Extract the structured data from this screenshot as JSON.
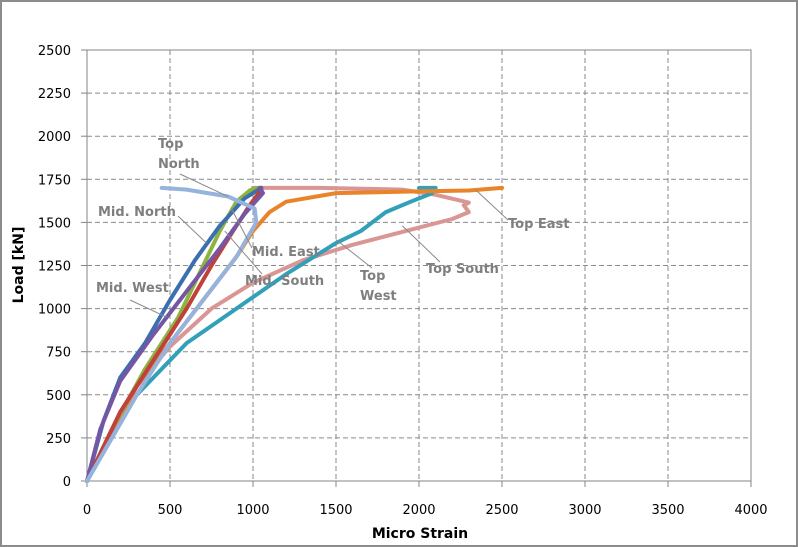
{
  "chart_data": {
    "type": "line",
    "title": "",
    "xlabel": "Micro Strain",
    "ylabel": "Load [kN]",
    "xlim": [
      0,
      4000
    ],
    "ylim": [
      0,
      2500
    ],
    "xticks": [
      0,
      500,
      1000,
      1500,
      2000,
      2500,
      3000,
      3500,
      4000
    ],
    "yticks": [
      0,
      250,
      500,
      750,
      1000,
      1250,
      1500,
      1750,
      2000,
      2250,
      2500
    ],
    "xtick_labels": [
      "0",
      "500",
      "1000",
      "1500",
      "2000",
      "2500",
      "3000",
      "3500",
      "4000"
    ],
    "ytick_labels": [
      "0",
      "250",
      "500",
      "750",
      "1000",
      "1250",
      "1500",
      "1750",
      "2000",
      "2250",
      "2500"
    ],
    "grid": true,
    "legend": "none (series labeled by annotations)",
    "series": [
      {
        "name": "Top South",
        "color": "#D99694",
        "points": [
          [
            0,
            0
          ],
          [
            300,
            550
          ],
          [
            500,
            780
          ],
          [
            750,
            1000
          ],
          [
            1000,
            1150
          ],
          [
            1300,
            1280
          ],
          [
            1600,
            1370
          ],
          [
            1800,
            1420
          ],
          [
            2000,
            1470
          ],
          [
            2200,
            1520
          ],
          [
            2300,
            1560
          ],
          [
            2270,
            1600
          ],
          [
            2300,
            1615
          ],
          [
            2100,
            1660
          ],
          [
            1900,
            1690
          ],
          [
            1400,
            1700
          ],
          [
            1000,
            1700
          ]
        ]
      },
      {
        "name": "Top West",
        "color": "#31A0B8",
        "points": [
          [
            0,
            0
          ],
          [
            300,
            500
          ],
          [
            600,
            800
          ],
          [
            900,
            1000
          ],
          [
            1200,
            1200
          ],
          [
            1500,
            1380
          ],
          [
            1650,
            1450
          ],
          [
            1800,
            1560
          ],
          [
            1950,
            1620
          ],
          [
            2080,
            1670
          ],
          [
            2000,
            1700
          ],
          [
            2100,
            1700
          ]
        ]
      },
      {
        "name": "Top East",
        "color": "#E9842A",
        "points": [
          [
            0,
            0
          ],
          [
            300,
            550
          ],
          [
            500,
            800
          ],
          [
            700,
            1050
          ],
          [
            900,
            1300
          ],
          [
            1000,
            1450
          ],
          [
            1100,
            1560
          ],
          [
            1200,
            1620
          ],
          [
            1500,
            1670
          ],
          [
            2000,
            1680
          ],
          [
            2300,
            1685
          ],
          [
            2500,
            1700
          ]
        ]
      },
      {
        "name": "Mid. North",
        "color": "#8CB43F",
        "points": [
          [
            0,
            0
          ],
          [
            150,
            300
          ],
          [
            350,
            650
          ],
          [
            550,
            950
          ],
          [
            700,
            1250
          ],
          [
            800,
            1450
          ],
          [
            900,
            1620
          ],
          [
            980,
            1685
          ],
          [
            1020,
            1700
          ]
        ]
      },
      {
        "name": "Mid. West",
        "color": "#3C6FB0",
        "points": [
          [
            0,
            0
          ],
          [
            100,
            350
          ],
          [
            200,
            600
          ],
          [
            350,
            800
          ],
          [
            500,
            1050
          ],
          [
            650,
            1280
          ],
          [
            800,
            1480
          ],
          [
            950,
            1640
          ],
          [
            1050,
            1700
          ]
        ]
      },
      {
        "name": "Mid. East",
        "color": "#C0413C",
        "points": [
          [
            0,
            0
          ],
          [
            200,
            400
          ],
          [
            400,
            700
          ],
          [
            600,
            1000
          ],
          [
            750,
            1250
          ],
          [
            880,
            1450
          ],
          [
            980,
            1600
          ],
          [
            1050,
            1690
          ]
        ]
      },
      {
        "name": "Mid. South",
        "color": "#7457A3",
        "points": [
          [
            0,
            0
          ],
          [
            80,
            300
          ],
          [
            200,
            580
          ],
          [
            400,
            850
          ],
          [
            600,
            1100
          ],
          [
            800,
            1350
          ],
          [
            950,
            1550
          ],
          [
            1060,
            1670
          ],
          [
            1040,
            1700
          ]
        ]
      },
      {
        "name": "Top North",
        "color": "#95B3DC",
        "points": [
          [
            0,
            0
          ],
          [
            300,
            500
          ],
          [
            500,
            800
          ],
          [
            700,
            1050
          ],
          [
            900,
            1300
          ],
          [
            1020,
            1500
          ],
          [
            1010,
            1580
          ],
          [
            850,
            1650
          ],
          [
            600,
            1690
          ],
          [
            450,
            1700
          ]
        ]
      }
    ],
    "annotations": [
      {
        "text_lines": [
          "Top",
          "North"
        ],
        "series": "Top North",
        "points_to": [
          850,
          1650
        ]
      },
      {
        "text_lines": [
          "Mid. North"
        ],
        "series": "Mid. North",
        "points_to": [
          720,
          1380
        ]
      },
      {
        "text_lines": [
          "Mid. West"
        ],
        "series": "Mid. West",
        "points_to": [
          480,
          950
        ]
      },
      {
        "text_lines": [
          "Mid. East"
        ],
        "series": "Mid. East",
        "points_to": [
          870,
          1580
        ]
      },
      {
        "text_lines": [
          "Mid. South"
        ],
        "series": "Mid. South",
        "points_to": [
          830,
          1450
        ]
      },
      {
        "text_lines": [
          "Top",
          "West"
        ],
        "series": "Top West",
        "points_to": [
          1500,
          1400
        ]
      },
      {
        "text_lines": [
          "Top South"
        ],
        "series": "Top South",
        "points_to": [
          1900,
          1480
        ]
      },
      {
        "text_lines": [
          "Top East"
        ],
        "series": "Top East",
        "points_to": [
          2340,
          1690
        ]
      }
    ]
  }
}
